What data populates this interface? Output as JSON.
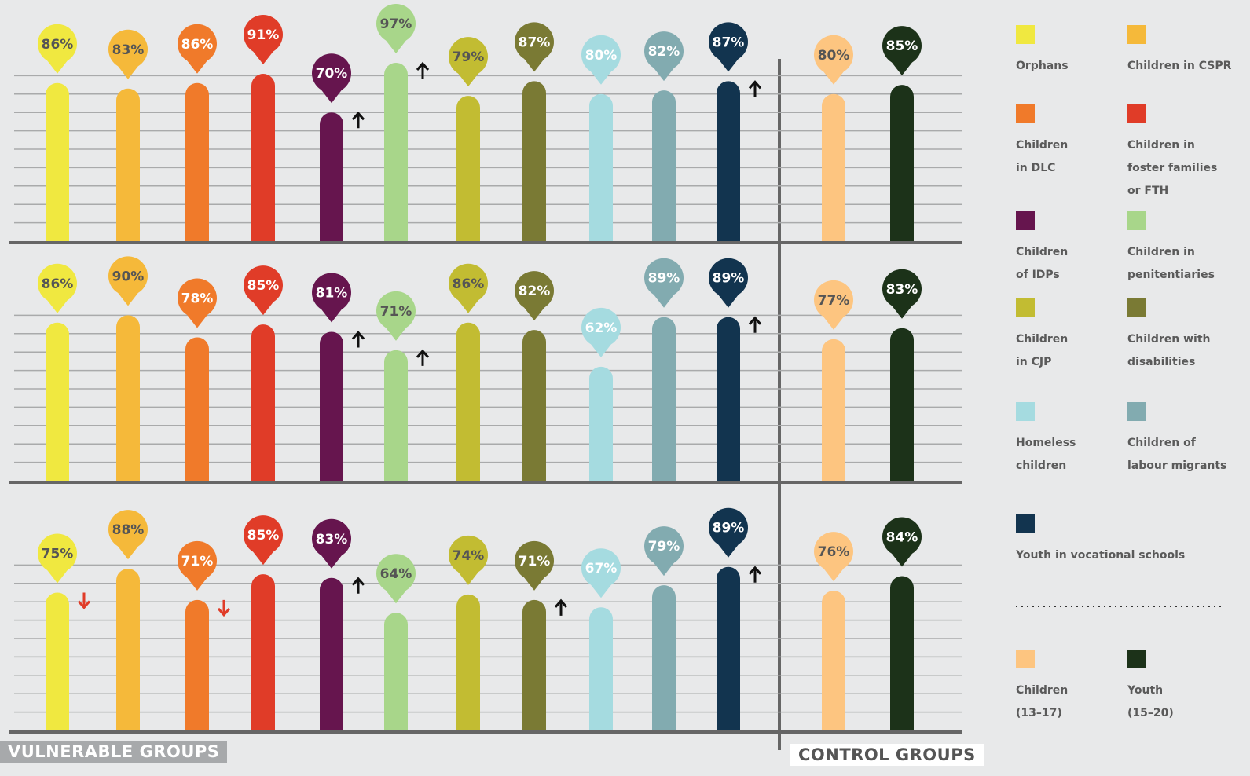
{
  "chart_data": {
    "type": "bar",
    "categories": [
      "Orphans",
      "Children in CSPR",
      "Children\n in DLC",
      "Children in\nfoster families\nor FTH",
      "Children\nof IDPs",
      "Children in\npenitentiaries",
      "Children\n in CJP",
      "Children with\ndisabilities",
      "Homeless\nchildren",
      "Children of\nlabour migrants",
      "Youth in vocational schools",
      "Children\n(13–17)",
      "Youth\n(15–20)"
    ],
    "colors": [
      "#f0e840",
      "#f5b93a",
      "#f07a2a",
      "#e03c28",
      "#66154e",
      "#a8d68a",
      "#c2bc32",
      "#7a7a34",
      "#a5dbe0",
      "#82abb0",
      "#12344f",
      "#fdc580",
      "#1c3219"
    ],
    "label_colors": [
      "#555555",
      "#555555",
      "#ffffff",
      "#ffffff",
      "#ffffff",
      "#555555",
      "#555555",
      "#ffffff",
      "#ffffff",
      "#ffffff",
      "#ffffff",
      "#555555",
      "#ffffff"
    ],
    "ylim": [
      0,
      100
    ],
    "yticks": [
      10,
      20,
      30,
      40,
      50,
      60,
      70,
      80,
      90
    ],
    "tick_labels": false,
    "grid": true,
    "control_start": 11,
    "group_labels": [
      "VULNERABLE GROUPS",
      "CONTROL GROUPS"
    ],
    "panels": [
      {
        "values": [
          86,
          83,
          86,
          91,
          70,
          97,
          79,
          87,
          80,
          82,
          87,
          80,
          85
        ],
        "value_labels": [
          "86%",
          "83%",
          "86%",
          "91%",
          "70%",
          "97%",
          "79%",
          "87%",
          "80%",
          "82%",
          "87%",
          "80%",
          "85%"
        ],
        "trend": [
          null,
          null,
          null,
          null,
          "up",
          "up",
          null,
          null,
          null,
          null,
          "up",
          null,
          null
        ]
      },
      {
        "values": [
          86,
          90,
          78,
          85,
          81,
          71,
          86,
          82,
          62,
          89,
          89,
          77,
          83
        ],
        "value_labels": [
          "86%",
          "90%",
          "78%",
          "85%",
          "81%",
          "71%",
          "86%",
          "82%",
          "62%",
          "89%",
          "89%",
          "77%",
          "83%"
        ],
        "trend": [
          null,
          null,
          null,
          null,
          "up",
          "up",
          null,
          null,
          null,
          null,
          "up",
          null,
          null
        ]
      },
      {
        "values": [
          75,
          88,
          71,
          85,
          83,
          64,
          74,
          71,
          67,
          79,
          89,
          76,
          84
        ],
        "value_labels": [
          "75%",
          "88%",
          "71%",
          "85%",
          "83%",
          "64%",
          "74%",
          "71%",
          "67%",
          "79%",
          "89%",
          "76%",
          "84%"
        ],
        "trend": [
          "down",
          null,
          "down",
          null,
          "up",
          null,
          null,
          "up",
          null,
          null,
          "up",
          null,
          null
        ]
      }
    ]
  }
}
